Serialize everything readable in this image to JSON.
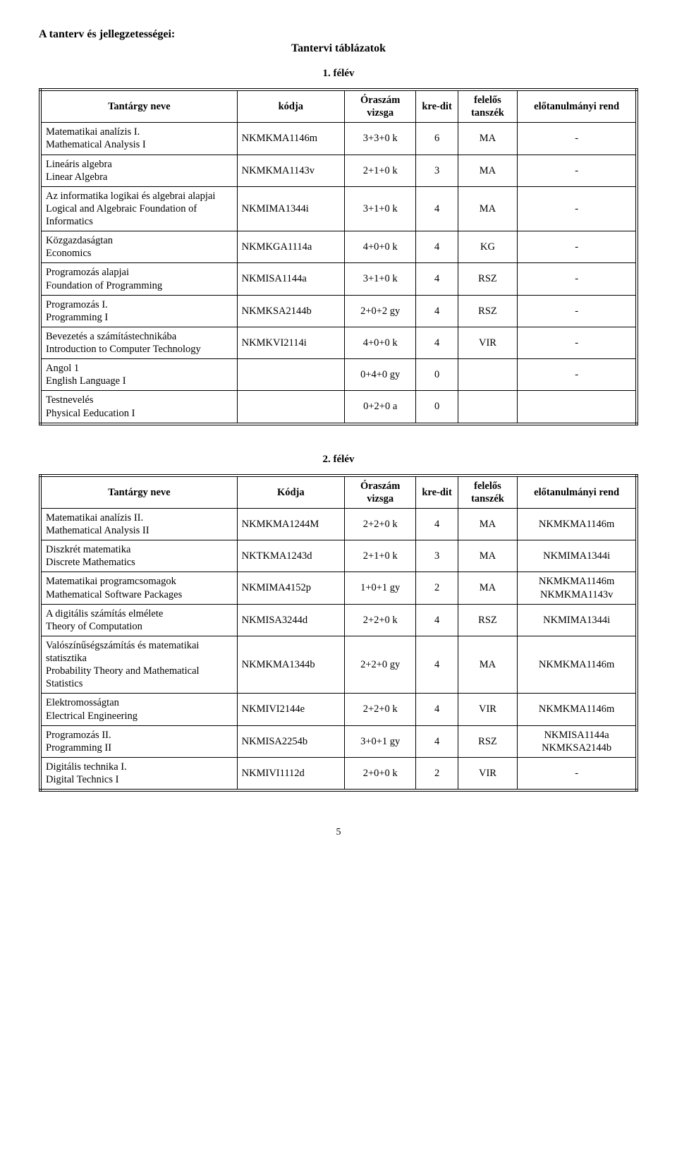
{
  "header": {
    "title_left": "A tanterv és jellegzetességei:",
    "title_center": "Tantervi táblázatok"
  },
  "semester1": {
    "heading": "1. félév",
    "columns": {
      "name": "Tantárgy neve",
      "code": "kódja",
      "hours": "Óraszám vizsga",
      "credit": "kre-dit",
      "dept": "felelős tanszék",
      "prereq": "előtanulmányi rend"
    },
    "rows": [
      {
        "name": "Matematikai analízis I.\nMathematical Analysis I",
        "code": "NKMKMA1146m",
        "hours": "3+3+0 k",
        "credit": "6",
        "dept": "MA",
        "prereq": "-"
      },
      {
        "name": "Lineáris algebra\nLinear Algebra",
        "code": "NKMKMA1143v",
        "hours": "2+1+0 k",
        "credit": "3",
        "dept": "MA",
        "prereq": "-"
      },
      {
        "name": "Az informatika logikai és algebrai alapjai\nLogical and Algebraic Foundation of Informatics",
        "code": "NKMIMA1344i",
        "hours": "3+1+0 k",
        "credit": "4",
        "dept": "MA",
        "prereq": "-"
      },
      {
        "name": "Közgazdaságtan\nEconomics",
        "code": "NKMKGA1114a",
        "hours": "4+0+0 k",
        "credit": "4",
        "dept": "KG",
        "prereq": "-"
      },
      {
        "name": "Programozás alapjai\nFoundation of Programming",
        "code": "NKMISA1144a",
        "hours": "3+1+0 k",
        "credit": "4",
        "dept": "RSZ",
        "prereq": "-"
      },
      {
        "name": "Programozás I.\nProgramming I",
        "code": "NKMKSA2144b",
        "hours": "2+0+2 gy",
        "credit": "4",
        "dept": "RSZ",
        "prereq": "-"
      },
      {
        "name": "Bevezetés a számítástechnikába\nIntroduction to Computer Technology",
        "code": "NKMKVI2114i",
        "hours": "4+0+0 k",
        "credit": "4",
        "dept": "VIR",
        "prereq": "-"
      },
      {
        "name": "Angol 1\nEnglish Language I",
        "code": "",
        "hours": "0+4+0 gy",
        "credit": "0",
        "dept": "",
        "prereq": "-"
      },
      {
        "name": "Testnevelés\nPhysical Eeducation I",
        "code": "",
        "hours": "0+2+0 a",
        "credit": "0",
        "dept": "",
        "prereq": ""
      }
    ]
  },
  "semester2": {
    "heading": "2. félév",
    "columns": {
      "name": "Tantárgy neve",
      "code": "Kódja",
      "hours": "Óraszám vizsga",
      "credit": "kre-dit",
      "dept": "felelős tanszék",
      "prereq": "előtanulmányi rend"
    },
    "rows": [
      {
        "name": "Matematikai analízis II.\nMathematical Analysis II",
        "code": "NKMKMA1244M",
        "hours": "2+2+0 k",
        "credit": "4",
        "dept": "MA",
        "prereq": "NKMKMA1146m"
      },
      {
        "name": "Diszkrét matematika\nDiscrete Mathematics",
        "code": "NKTKMA1243d",
        "hours": "2+1+0 k",
        "credit": "3",
        "dept": "MA",
        "prereq": "NKMIMA1344i"
      },
      {
        "name": "Matematikai programcsomagok\nMathematical Software Packages",
        "code": "NKMIMA4152p",
        "hours": "1+0+1 gy",
        "credit": "2",
        "dept": "MA",
        "prereq": "NKMKMA1146m\nNKMKMA1143v"
      },
      {
        "name": "A digitális számítás elmélete\nTheory of Computation",
        "code": "NKMISA3244d",
        "hours": "2+2+0 k",
        "credit": "4",
        "dept": "RSZ",
        "prereq": "NKMIMA1344i"
      },
      {
        "name": "Valószínűségszámítás és matematikai statisztika\nProbability Theory and Mathematical Statistics",
        "code": "NKMKMA1344b",
        "hours": "2+2+0 gy",
        "credit": "4",
        "dept": "MA",
        "prereq": "NKMKMA1146m"
      },
      {
        "name": "Elektromosságtan\nElectrical Engineering",
        "code": "NKMIVI2144e",
        "hours": "2+2+0 k",
        "credit": "4",
        "dept": "VIR",
        "prereq": "NKMKMA1146m"
      },
      {
        "name": "Programozás II.\nProgramming II",
        "code": "NKMISA2254b",
        "hours": "3+0+1 gy",
        "credit": "4",
        "dept": "RSZ",
        "prereq": "NKMISA1144a\nNKMKSA2144b"
      },
      {
        "name": "Digitális technika I.\nDigital Technics I",
        "code": "NKMIVI1112d",
        "hours": "2+0+0 k",
        "credit": "2",
        "dept": "VIR",
        "prereq": "-"
      }
    ]
  },
  "page_number": "5"
}
